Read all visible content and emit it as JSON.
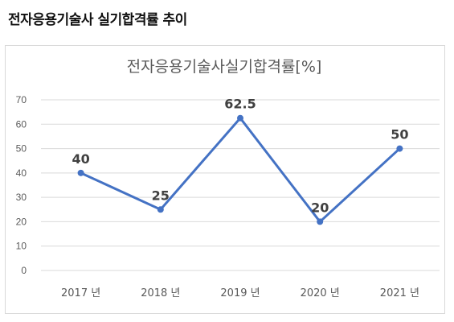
{
  "heading": "전자응용기술사 실기합격률 추이",
  "chart_data": {
    "type": "line",
    "title": "전자응용기술사실기합격률[%]",
    "xlabel": "",
    "ylabel": "",
    "categories": [
      "2017 년",
      "2018 년",
      "2019 년",
      "2020 년",
      "2021 년"
    ],
    "series": [
      {
        "values": [
          40,
          25,
          62.5,
          20,
          50
        ],
        "color": "#4472c4"
      }
    ],
    "data_labels": [
      "40",
      "25",
      "62.5",
      "20",
      "50"
    ],
    "ylim": [
      0,
      70
    ],
    "yticks": [
      0,
      10,
      20,
      30,
      40,
      50,
      60,
      70
    ],
    "ytick_labels": [
      "0",
      "10",
      "20",
      "30",
      "40",
      "50",
      "60",
      "70"
    ],
    "grid": true,
    "legend": "none"
  }
}
